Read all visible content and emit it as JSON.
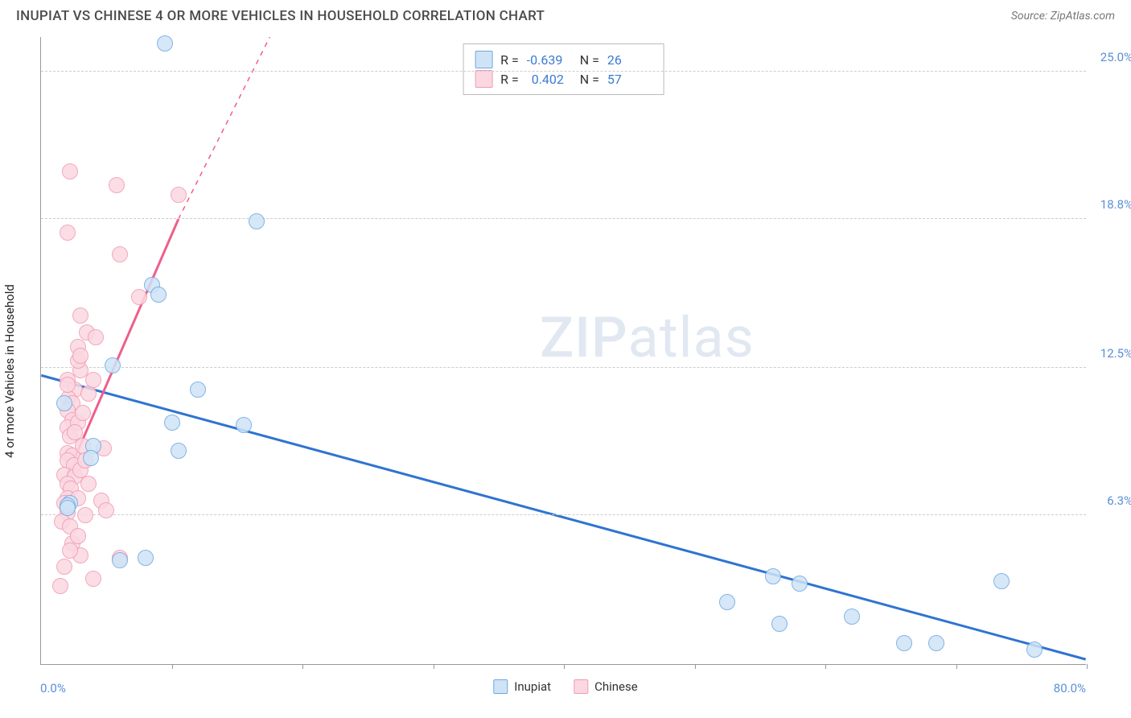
{
  "header": {
    "title": "INUPIAT VS CHINESE 4 OR MORE VEHICLES IN HOUSEHOLD CORRELATION CHART",
    "source": "Source: ZipAtlas.com"
  },
  "watermark": {
    "zip": "ZIP",
    "atlas": "atlas"
  },
  "chart": {
    "type": "scatter",
    "background_color": "#ffffff",
    "grid_color": "#cccccc",
    "axis_color": "#999999",
    "yaxis_label": "4 or more Vehicles in Household",
    "label_fontsize": 15,
    "xlim": [
      0.0,
      80.0
    ],
    "ylim": [
      0.0,
      26.5
    ],
    "yticks": [
      6.3,
      12.5,
      18.8,
      25.0
    ],
    "ytick_labels": [
      "6.3%",
      "12.5%",
      "18.8%",
      "25.0%"
    ],
    "xlim_labels": [
      "0.0%",
      "80.0%"
    ],
    "xtick_positions": [
      10,
      20,
      30,
      40,
      50,
      60,
      70,
      80
    ],
    "ytick_color": "#5a8fd6",
    "marker_radius": 10,
    "marker_border_width": 1.5,
    "series": {
      "inupiat": {
        "label": "Inupiat",
        "fill": "#cfe3f7",
        "stroke": "#6fa8e0",
        "line_color": "#2f74d0",
        "line_width": 3,
        "trend": {
          "x1": 0,
          "y1": 12.2,
          "x2": 80,
          "y2": 0.2
        },
        "R": "-0.639",
        "N": "26",
        "points": [
          [
            9.5,
            26.2
          ],
          [
            16.5,
            18.7
          ],
          [
            8.5,
            16.0
          ],
          [
            9.0,
            15.6
          ],
          [
            5.5,
            12.6
          ],
          [
            1.8,
            11.0
          ],
          [
            12.0,
            11.6
          ],
          [
            10.0,
            10.2
          ],
          [
            15.5,
            10.1
          ],
          [
            4.0,
            9.2
          ],
          [
            10.5,
            9.0
          ],
          [
            3.8,
            8.7
          ],
          [
            2.2,
            6.8
          ],
          [
            2.0,
            6.7
          ],
          [
            8.0,
            4.5
          ],
          [
            56.0,
            3.7
          ],
          [
            58.0,
            3.4
          ],
          [
            52.5,
            2.6
          ],
          [
            56.5,
            1.7
          ],
          [
            62.0,
            2.0
          ],
          [
            66.0,
            0.9
          ],
          [
            68.5,
            0.9
          ],
          [
            73.5,
            3.5
          ],
          [
            76.0,
            0.6
          ],
          [
            6.0,
            4.4
          ],
          [
            2.0,
            6.6
          ]
        ]
      },
      "chinese": {
        "label": "Chinese",
        "fill": "#fbd8e1",
        "stroke": "#f19ab2",
        "line_color": "#ef5f8a",
        "line_width": 3,
        "trend_solid": {
          "x1": 2.0,
          "y1": 8.0,
          "x2": 10.5,
          "y2": 18.8
        },
        "trend_dashed": {
          "x1": 10.5,
          "y1": 18.8,
          "x2": 17.5,
          "y2": 26.5
        },
        "R": "0.402",
        "N": "57",
        "points": [
          [
            2.2,
            20.8
          ],
          [
            5.8,
            20.2
          ],
          [
            10.5,
            19.8
          ],
          [
            2.0,
            18.2
          ],
          [
            6.0,
            17.3
          ],
          [
            7.5,
            15.5
          ],
          [
            3.0,
            14.7
          ],
          [
            3.5,
            14.0
          ],
          [
            4.2,
            13.8
          ],
          [
            2.8,
            13.4
          ],
          [
            3.0,
            12.4
          ],
          [
            2.0,
            12.0
          ],
          [
            2.6,
            11.6
          ],
          [
            2.1,
            11.2
          ],
          [
            2.4,
            11.0
          ],
          [
            3.6,
            11.4
          ],
          [
            2.0,
            10.7
          ],
          [
            2.4,
            10.3
          ],
          [
            2.0,
            10.0
          ],
          [
            2.8,
            10.2
          ],
          [
            2.2,
            9.6
          ],
          [
            2.0,
            8.9
          ],
          [
            2.4,
            8.8
          ],
          [
            3.2,
            9.2
          ],
          [
            2.0,
            8.6
          ],
          [
            2.5,
            8.4
          ],
          [
            1.8,
            8.0
          ],
          [
            2.6,
            7.9
          ],
          [
            2.0,
            7.6
          ],
          [
            3.6,
            7.6
          ],
          [
            2.3,
            7.4
          ],
          [
            2.0,
            7.0
          ],
          [
            2.8,
            7.0
          ],
          [
            1.8,
            6.8
          ],
          [
            4.6,
            6.9
          ],
          [
            2.0,
            6.4
          ],
          [
            3.4,
            6.3
          ],
          [
            5.0,
            6.5
          ],
          [
            1.6,
            6.0
          ],
          [
            2.4,
            5.1
          ],
          [
            3.0,
            4.6
          ],
          [
            6.0,
            4.5
          ],
          [
            1.8,
            4.1
          ],
          [
            4.0,
            3.6
          ],
          [
            1.5,
            3.3
          ],
          [
            3.0,
            8.2
          ],
          [
            2.6,
            9.8
          ],
          [
            3.2,
            10.6
          ],
          [
            4.0,
            12.0
          ],
          [
            3.4,
            8.6
          ],
          [
            2.2,
            5.8
          ],
          [
            2.8,
            5.4
          ],
          [
            2.0,
            11.8
          ],
          [
            2.8,
            12.8
          ],
          [
            3.0,
            13.0
          ],
          [
            4.8,
            9.1
          ],
          [
            2.2,
            4.8
          ]
        ]
      }
    }
  },
  "legend_top": {
    "r_label": "R =",
    "n_label": "N ="
  }
}
